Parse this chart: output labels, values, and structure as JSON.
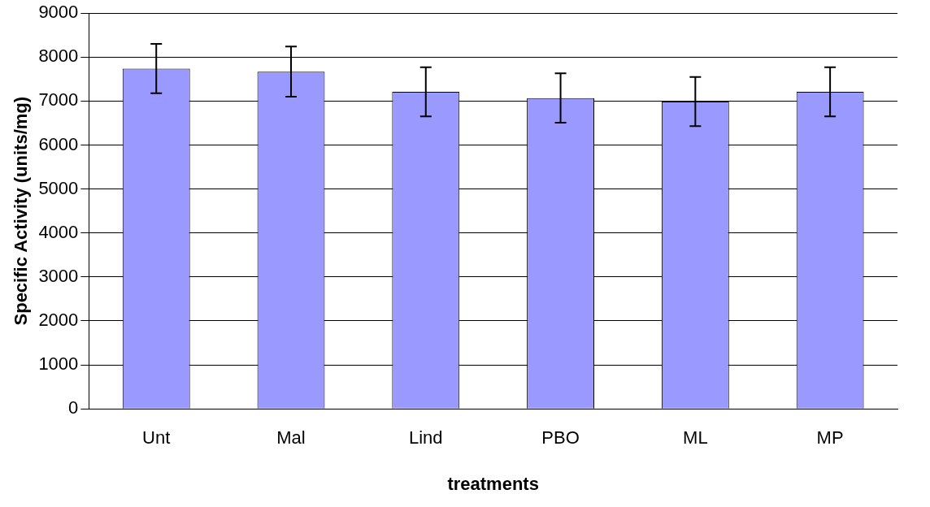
{
  "chart_data": {
    "type": "bar",
    "xlabel": "treatments",
    "ylabel": "Specific Activity (units/mg)",
    "categories": [
      "Unt",
      "Mal",
      "Lind",
      "PBO",
      "ML",
      "MP"
    ],
    "values": [
      7740,
      7670,
      7210,
      7070,
      6990,
      7210
    ],
    "errors": [
      560,
      570,
      560,
      560,
      560,
      560
    ],
    "color": "#9999ff",
    "ylim": [
      0,
      9000
    ],
    "yticks": [
      0,
      1000,
      2000,
      3000,
      4000,
      5000,
      6000,
      7000,
      8000,
      9000
    ],
    "grid": "y",
    "legend": false
  }
}
